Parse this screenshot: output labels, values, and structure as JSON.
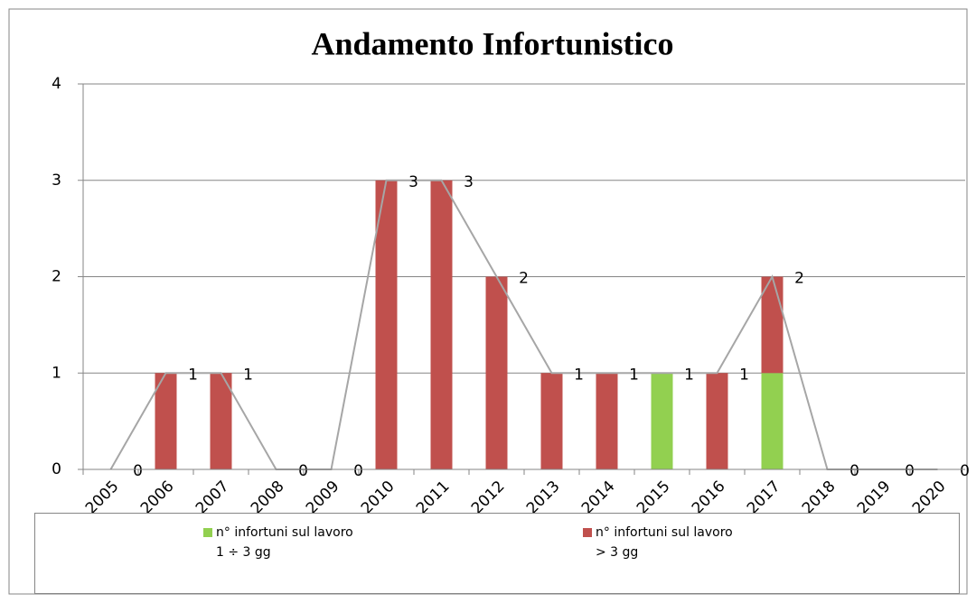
{
  "chart_data": {
    "type": "stacked_bar_line",
    "title": "Andamento Infortunistico",
    "categories": [
      "2005",
      "2006",
      "2007",
      "2008",
      "2009",
      "2010",
      "2011",
      "2012",
      "2013",
      "2014",
      "2015",
      "2016",
      "2017",
      "2018",
      "2019",
      "2020"
    ],
    "series": [
      {
        "name": "n° infortuni sul lavoro\n1 ÷ 3 gg",
        "color": "#92d050",
        "values": [
          0,
          0,
          0,
          0,
          0,
          0,
          0,
          0,
          0,
          0,
          1,
          0,
          1,
          0,
          0,
          0
        ]
      },
      {
        "name": "n° infortuni sul lavoro\n> 3 gg",
        "color": "#c0504d",
        "values": [
          0,
          1,
          1,
          0,
          0,
          3,
          3,
          2,
          1,
          1,
          0,
          1,
          1,
          0,
          0,
          0
        ]
      }
    ],
    "line": {
      "color": "#a6a6a6",
      "values": [
        0,
        1,
        1,
        0,
        0,
        3,
        3,
        2,
        1,
        1,
        1,
        1,
        2,
        0,
        0,
        0
      ]
    },
    "ylim": [
      0,
      4
    ],
    "yticks": [
      0,
      1,
      2,
      3,
      4
    ],
    "grid": true
  }
}
